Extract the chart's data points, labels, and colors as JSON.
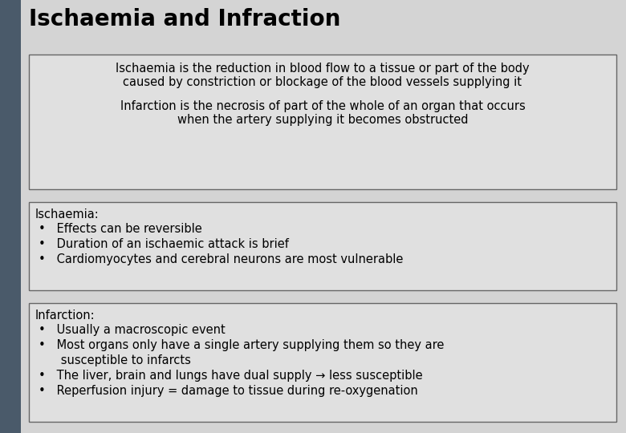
{
  "title": "Ischaemia and Infraction",
  "bg_color": "#d4d4d4",
  "left_bar_color": "#4a5a6a",
  "title_color": "#000000",
  "title_fontsize": 20,
  "box_bg": "#e0e0e0",
  "box_edge_color": "#666666",
  "text_fontsize": 10.5,
  "bullet_fontsize": 10.5,
  "box1_lines": [
    "Ischaemia is the reduction in blood flow to a tissue or part of the body",
    "caused by constriction or blockage of the blood vessels supplying it",
    "",
    "Infarction is the necrosis of part of the whole of an organ that occurs",
    "when the artery supplying it becomes obstructed"
  ],
  "box2_title": "Ischaemia:",
  "box2_bullets": [
    "Effects can be reversible",
    "Duration of an ischaemic attack is brief",
    "Cardiomyocytes and cerebral neurons are most vulnerable"
  ],
  "box3_title": "Infarction:",
  "box3_bullets": [
    "Usually a macroscopic event",
    "Most organs only have a single artery supplying them so they are",
    "    susceptible to infarcts",
    "The liver, brain and lungs have dual supply → less susceptible",
    "Reperfusion injury = damage to tissue during re-oxygenation"
  ],
  "box3_bullet_markers": [
    true,
    true,
    false,
    true,
    true
  ]
}
